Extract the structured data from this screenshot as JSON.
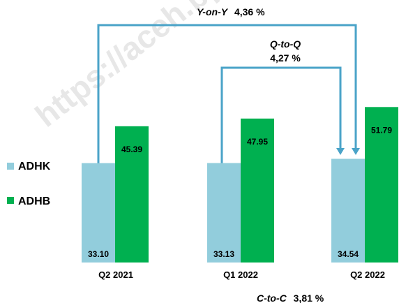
{
  "chart_data": {
    "type": "bar",
    "categories": [
      "Q2 2021",
      "Q1 2022",
      "Q2 2022"
    ],
    "series": [
      {
        "name": "ADHK",
        "values": [
          33.1,
          33.13,
          34.54
        ],
        "labels": [
          "33.10",
          "33.13",
          "34.54"
        ],
        "color": "#92cddc"
      },
      {
        "name": "ADHB",
        "values": [
          45.39,
          47.95,
          51.79
        ],
        "labels": [
          "45.39",
          "47.95",
          "51.79"
        ],
        "color": "#00b050"
      }
    ],
    "annotations": {
      "yoy": {
        "label": "Y-on-Y",
        "value": "4,36 %"
      },
      "qtq": {
        "label": "Q-to-Q",
        "value": "4,27 %"
      },
      "ctc": {
        "label": "C-to-C",
        "value": "3,81 %"
      }
    },
    "legend_position": "left",
    "grid": false
  },
  "watermark": "https://aceh.bps.go.id",
  "colors": {
    "arrow": "#4aa3c8",
    "label_text": "#000000"
  }
}
